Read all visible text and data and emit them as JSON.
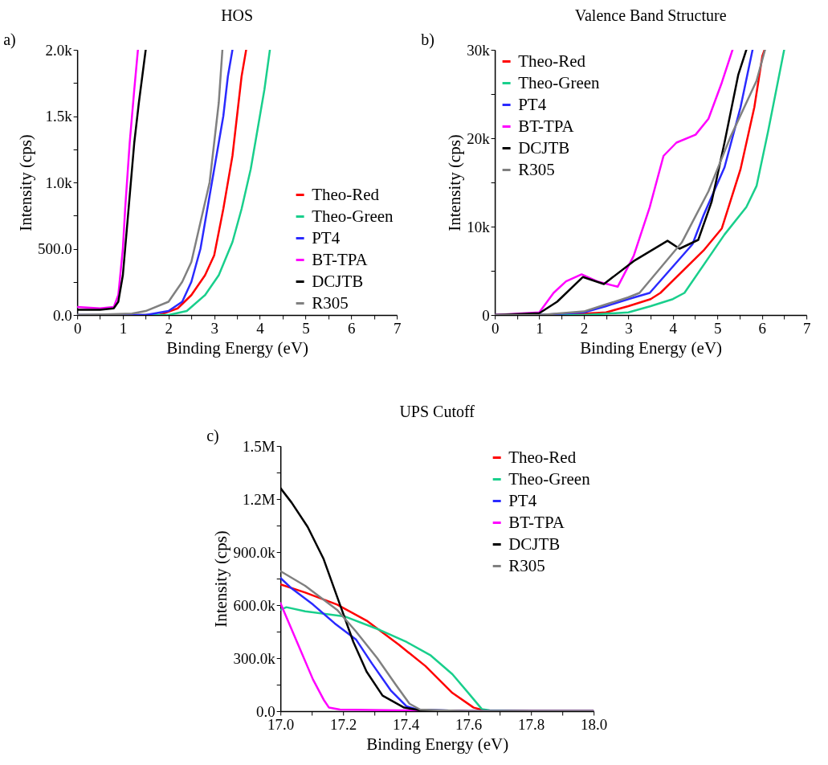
{
  "chart_data": [
    {
      "type": "line",
      "title": "HOS",
      "xlabel": "Binding Energy (eV)",
      "ylabel": "Intensity (cps)",
      "annotations": [
        "a)"
      ],
      "xlim": [
        0,
        7
      ],
      "ylim": [
        0,
        2000
      ],
      "xticks": [
        0,
        {
          "value": 0.5,
          "label": null
        },
        1,
        {
          "value": 1.5,
          "label": null
        },
        2,
        {
          "value": 2.5,
          "label": null
        },
        3,
        {
          "value": 3.5,
          "label": null
        },
        4,
        {
          "value": 4.5,
          "label": null
        },
        5,
        {
          "value": 5.5,
          "label": null
        },
        6,
        {
          "value": 6.5,
          "label": null
        },
        7
      ],
      "yticks": [
        {
          "value": 0,
          "label": "0.0"
        },
        {
          "value": 250,
          "label": null
        },
        {
          "value": 500,
          "label": "500.0"
        },
        {
          "value": 750,
          "label": null
        },
        {
          "value": 1000,
          "label": "1.0k"
        },
        {
          "value": 1250,
          "label": null
        },
        {
          "value": 1500,
          "label": "1.5k"
        },
        {
          "value": 1750,
          "label": null
        },
        {
          "value": 2000,
          "label": "2.0k"
        }
      ],
      "grid": false,
      "legend": "bottom right",
      "marker": "none",
      "line_style": "solid",
      "series": [
        {
          "name": "Theo-Red",
          "color": "#ff0000",
          "x": [
            0,
            1.8,
            2.2,
            2.5,
            2.8,
            3.0,
            3.2,
            3.4,
            3.5,
            3.6,
            3.7
          ],
          "values": [
            0,
            0,
            50,
            150,
            300,
            450,
            800,
            1200,
            1500,
            1800,
            2000
          ]
        },
        {
          "name": "Theo-Green",
          "color": "#19cf8c",
          "x": [
            0,
            2.0,
            2.4,
            2.8,
            3.1,
            3.4,
            3.6,
            3.8,
            4.0,
            4.1,
            4.22
          ],
          "values": [
            0,
            0,
            30,
            150,
            300,
            550,
            800,
            1100,
            1500,
            1700,
            2000
          ]
        },
        {
          "name": "PT4",
          "color": "#2a2aff",
          "x": [
            0,
            1.5,
            2.0,
            2.3,
            2.5,
            2.7,
            2.9,
            3.0,
            3.1,
            3.2,
            3.3,
            3.4
          ],
          "values": [
            0,
            0,
            30,
            100,
            250,
            500,
            900,
            1100,
            1300,
            1500,
            1800,
            2000
          ]
        },
        {
          "name": "BT-TPA",
          "color": "#ff00ff",
          "x": [
            0,
            0.5,
            0.8,
            0.9,
            1.0,
            1.05,
            1.15,
            1.25,
            1.33
          ],
          "values": [
            60,
            50,
            60,
            150,
            500,
            800,
            1300,
            1700,
            2000
          ]
        },
        {
          "name": "DCJTB",
          "color": "#000000",
          "x": [
            0,
            0.5,
            0.8,
            0.9,
            1.0,
            1.05,
            1.15,
            1.25,
            1.35,
            1.5
          ],
          "values": [
            40,
            40,
            50,
            100,
            300,
            500,
            900,
            1300,
            1600,
            2000
          ]
        },
        {
          "name": "R305",
          "color": "#808080",
          "x": [
            0,
            0.6,
            1.2,
            1.5,
            2.0,
            2.3,
            2.5,
            2.7,
            2.9,
            3.0,
            3.1,
            3.18
          ],
          "values": [
            0,
            5,
            10,
            30,
            100,
            250,
            400,
            700,
            1000,
            1300,
            1600,
            2000
          ]
        }
      ]
    },
    {
      "type": "line",
      "title": "Valence Band Structure",
      "xlabel": "Binding Energy (eV)",
      "ylabel": "Intensity (cps)",
      "annotations": [
        "b)"
      ],
      "xlim": [
        0,
        7
      ],
      "ylim": [
        0,
        30000
      ],
      "xticks": [
        0,
        {
          "value": 0.5,
          "label": null
        },
        1,
        {
          "value": 1.5,
          "label": null
        },
        2,
        {
          "value": 2.5,
          "label": null
        },
        3,
        {
          "value": 3.5,
          "label": null
        },
        4,
        {
          "value": 4.5,
          "label": null
        },
        5,
        {
          "value": 5.5,
          "label": null
        },
        6,
        {
          "value": 6.5,
          "label": null
        },
        7
      ],
      "yticks": [
        0,
        {
          "value": 5000,
          "label": null
        },
        {
          "value": 10000,
          "label": "10k"
        },
        {
          "value": 15000,
          "label": null
        },
        {
          "value": 20000,
          "label": "20k"
        },
        {
          "value": 25000,
          "label": null
        },
        {
          "value": 30000,
          "label": "30k"
        }
      ],
      "grid": false,
      "legend": "top left",
      "marker": "none",
      "line_style": "solid",
      "series": [
        {
          "name": "Theo-Red",
          "color": "#ff0000",
          "x": [
            0,
            1.5,
            2.5,
            3.0,
            3.5,
            3.72,
            4.69,
            5.1,
            5.52,
            5.83,
            6.01,
            6.06
          ],
          "values": [
            0,
            0,
            300,
            1000,
            1800,
            2500,
            7300,
            9800,
            16500,
            23500,
            29300,
            30000
          ]
        },
        {
          "name": "Theo-Green",
          "color": "#19cf8c",
          "x": [
            0,
            2.0,
            3.0,
            3.5,
            4.0,
            4.26,
            5.16,
            5.65,
            5.88,
            6.14,
            6.5
          ],
          "values": [
            0,
            0,
            300,
            1000,
            1800,
            2500,
            9100,
            12200,
            14600,
            20800,
            30000
          ]
        },
        {
          "name": "PT4",
          "color": "#2a2aff",
          "x": [
            0,
            1.0,
            2.0,
            2.5,
            3.0,
            3.48,
            4.44,
            4.69,
            5.16,
            5.52,
            5.79
          ],
          "values": [
            0,
            0,
            300,
            1000,
            1800,
            2500,
            8000,
            11300,
            16700,
            23500,
            30000
          ]
        },
        {
          "name": "BT-TPA",
          "color": "#ff00ff",
          "x": [
            0,
            1.0,
            1.32,
            1.6,
            1.95,
            2.3,
            2.76,
            3.12,
            3.48,
            3.79,
            4.08,
            4.51,
            4.8,
            5.1,
            5.34
          ],
          "values": [
            0,
            300,
            2500,
            3800,
            4600,
            3800,
            3200,
            6700,
            12200,
            18000,
            19500,
            20400,
            22200,
            26300,
            30000
          ]
        },
        {
          "name": "DCJTB",
          "color": "#000000",
          "x": [
            0,
            1.0,
            1.4,
            1.98,
            2.45,
            3.12,
            3.88,
            4.15,
            4.57,
            4.87,
            5.16,
            5.47,
            5.65
          ],
          "values": [
            0,
            200,
            1500,
            4300,
            3500,
            6100,
            8400,
            7500,
            8500,
            12800,
            19500,
            27200,
            30000
          ]
        },
        {
          "name": "R305",
          "color": "#808080",
          "x": [
            0,
            1.0,
            2.0,
            2.5,
            3.0,
            3.25,
            4.2,
            4.8,
            5.29,
            5.88,
            6.07
          ],
          "values": [
            0,
            0,
            400,
            1200,
            2000,
            2500,
            8200,
            14000,
            20100,
            26500,
            30000
          ]
        }
      ]
    },
    {
      "type": "line",
      "title": "UPS Cutoff",
      "xlabel": "Binding Energy (eV)",
      "ylabel": "Intensity (cps)",
      "annotations": [
        "c)"
      ],
      "xlim": [
        17.0,
        18.0
      ],
      "ylim": [
        0,
        1500000
      ],
      "xticks": [
        {
          "value": 17.0,
          "label": "17.0"
        },
        {
          "value": 17.1,
          "label": null
        },
        17.2,
        {
          "value": 17.3,
          "label": null
        },
        17.4,
        {
          "value": 17.5,
          "label": null
        },
        17.6,
        {
          "value": 17.7,
          "label": null
        },
        17.8,
        {
          "value": 17.9,
          "label": null
        },
        {
          "value": 18.0,
          "label": "18.0"
        }
      ],
      "yticks": [
        {
          "value": 0,
          "label": "0.0"
        },
        {
          "value": 150000,
          "label": null
        },
        {
          "value": 300000,
          "label": "300.0k"
        },
        {
          "value": 450000,
          "label": null
        },
        {
          "value": 600000,
          "label": "600.0k"
        },
        {
          "value": 750000,
          "label": null
        },
        {
          "value": 900000,
          "label": "900.0k"
        },
        {
          "value": 1050000,
          "label": null
        },
        {
          "value": 1200000,
          "label": "1.2M"
        },
        {
          "value": 1350000,
          "label": null
        },
        {
          "value": 1500000,
          "label": "1.5M"
        }
      ],
      "grid": false,
      "legend": "top right",
      "marker": "none",
      "line_style": "solid",
      "series": [
        {
          "name": "Theo-Red",
          "color": "#ff0000",
          "x": [
            17.0,
            17.079,
            17.181,
            17.275,
            17.378,
            17.463,
            17.549,
            17.617,
            17.651,
            17.8,
            18.0
          ],
          "values": [
            717000,
            671000,
            603000,
            512000,
            376000,
            255000,
            103000,
            20000,
            5000,
            0,
            0
          ]
        },
        {
          "name": "Theo-Green",
          "color": "#19cf8c",
          "x": [
            17.0,
            17.019,
            17.079,
            17.207,
            17.318,
            17.403,
            17.48,
            17.549,
            17.6,
            17.643,
            17.668,
            17.8,
            18.0
          ],
          "values": [
            573000,
            588000,
            565000,
            535000,
            459000,
            391000,
            315000,
            209000,
            103000,
            12000,
            5000,
            0,
            0
          ]
        },
        {
          "name": "PT4",
          "color": "#2a2aff",
          "x": [
            17.0,
            17.036,
            17.104,
            17.173,
            17.241,
            17.292,
            17.352,
            17.403,
            17.437,
            17.6,
            18.0
          ],
          "values": [
            754000,
            694000,
            603000,
            497000,
            406000,
            270000,
            118000,
            27000,
            9000,
            0,
            0
          ]
        },
        {
          "name": "BT-TPA",
          "color": "#ff00ff",
          "x": [
            17.0,
            17.053,
            17.104,
            17.138,
            17.155,
            17.19,
            17.378,
            17.6,
            18.0
          ],
          "values": [
            611000,
            391000,
            179000,
            65000,
            20000,
            9000,
            5000,
            0,
            0
          ]
        },
        {
          "name": "DCJTB",
          "color": "#000000",
          "x": [
            17.0,
            17.036,
            17.087,
            17.138,
            17.19,
            17.233,
            17.275,
            17.326,
            17.395,
            17.446,
            17.6,
            18.0
          ],
          "values": [
            1262000,
            1179000,
            1042000,
            860000,
            603000,
            391000,
            224000,
            88000,
            20000,
            5000,
            0,
            0
          ]
        },
        {
          "name": "R305",
          "color": "#808080",
          "x": [
            17.0,
            17.079,
            17.181,
            17.241,
            17.309,
            17.369,
            17.412,
            17.446,
            17.6,
            18.0
          ],
          "values": [
            792000,
            709000,
            573000,
            451000,
            300000,
            148000,
            42000,
            9000,
            0,
            0
          ]
        }
      ]
    }
  ]
}
